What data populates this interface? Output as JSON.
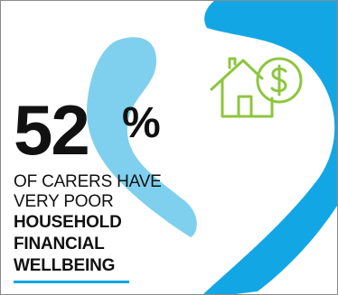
{
  "headline": {
    "number": "52",
    "percent": "%"
  },
  "caption": {
    "line1": "OF CARERS HAVE",
    "line2": "VERY POOR",
    "line3": "HOUSEHOLD",
    "line4": "FINANCIAL",
    "line5": "WELLBEING"
  },
  "colors": {
    "accent_blue": "#12A7E4",
    "light_blue": "#7FD0EE",
    "icon_green": "#8DC63F",
    "text": "#111111",
    "border": "#8a8a8a"
  },
  "icons": {
    "house": "house-with-dollar-icon"
  }
}
